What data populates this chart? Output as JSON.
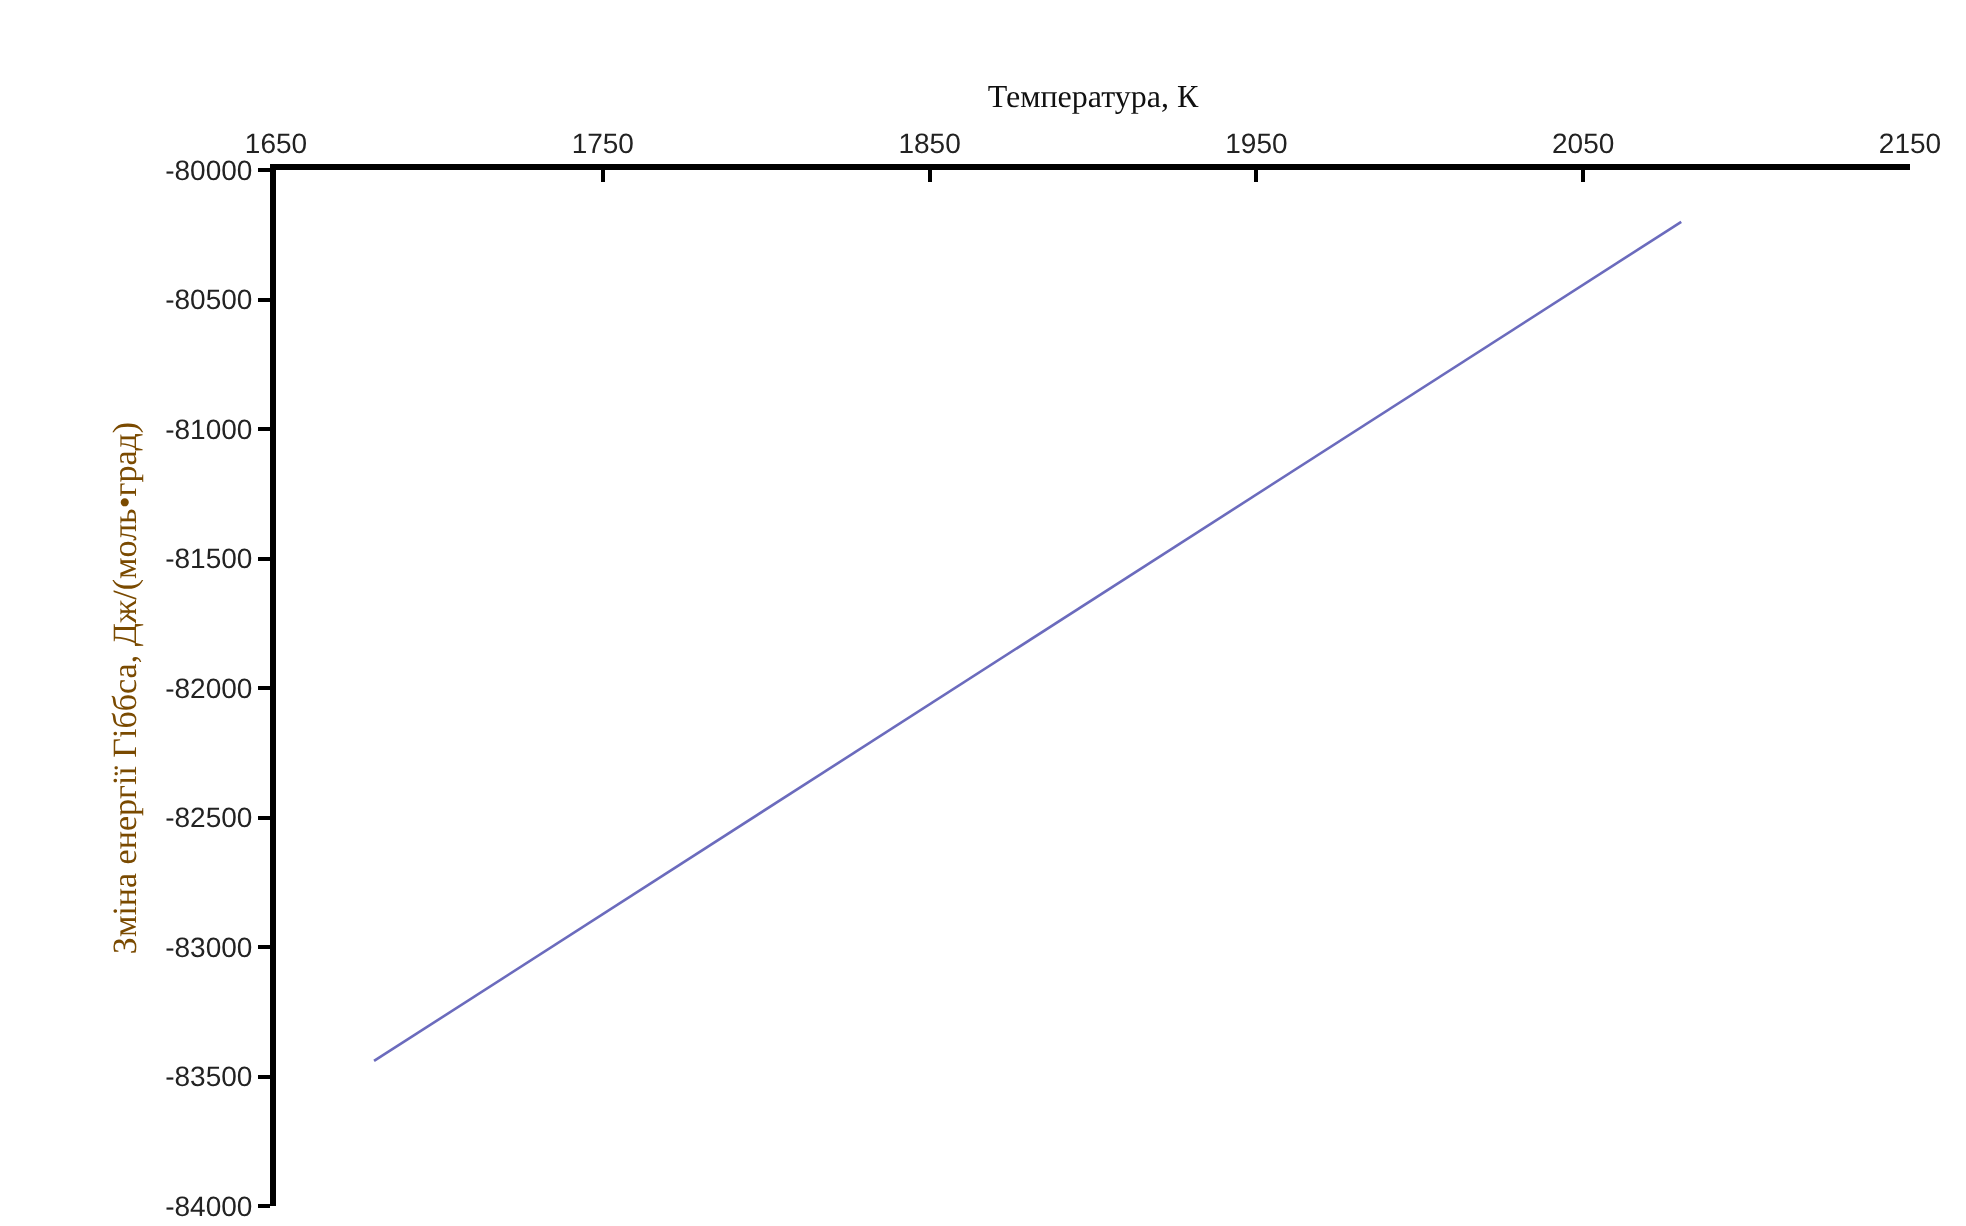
{
  "chart_data": {
    "type": "line",
    "xlabel": "Температура, К",
    "ylabel": "Зміна енергії Гіббса, Дж/(моль•град)",
    "x": [
      1680,
      2080
    ],
    "series": [
      {
        "color": "#6b6bbd",
        "values": [
          -83440,
          -80200
        ]
      }
    ],
    "xlim": [
      1650,
      2150
    ],
    "xticks": [
      1650,
      1750,
      1850,
      1950,
      2050,
      2150
    ],
    "ylim": [
      -84000,
      -80000
    ],
    "yticks": [
      -84000,
      -83500,
      -83000,
      -82500,
      -82000,
      -81500,
      -81000,
      -80500,
      -80000
    ],
    "grid": false,
    "marker": "none",
    "line_style": "solid"
  }
}
